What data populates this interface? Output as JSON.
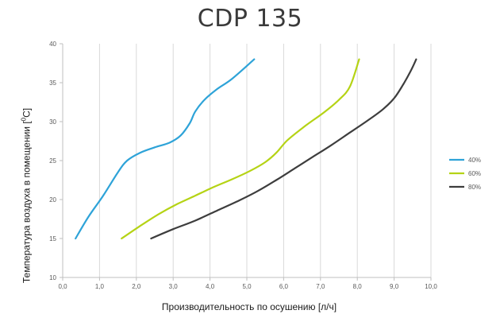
{
  "chart_data": {
    "type": "line",
    "title": "CDP 135",
    "xlabel": "Производительность по осушению [л/ч]",
    "ylabel_prefix": "Температура воздуха в помещении [",
    "ylabel_sup": "0",
    "ylabel_suffix": "C]",
    "xlim": [
      0,
      10
    ],
    "ylim": [
      10,
      40
    ],
    "xticks": [
      "0,0",
      "1,0",
      "2,0",
      "3,0",
      "4,0",
      "5,0",
      "6,0",
      "7,0",
      "8,0",
      "9,0",
      "10,0"
    ],
    "yticks": [
      "10",
      "15",
      "20",
      "25",
      "30",
      "35",
      "40"
    ],
    "grid": "vertical",
    "legend_position": "right",
    "series": [
      {
        "name": "40%",
        "color": "#2ea3d8",
        "points": [
          [
            0.35,
            15
          ],
          [
            0.7,
            17.8
          ],
          [
            1.1,
            20.5
          ],
          [
            1.5,
            23.5
          ],
          [
            1.75,
            25
          ],
          [
            2.1,
            26
          ],
          [
            2.5,
            26.7
          ],
          [
            2.9,
            27.3
          ],
          [
            3.2,
            28.2
          ],
          [
            3.45,
            29.8
          ],
          [
            3.6,
            31.3
          ],
          [
            3.85,
            32.8
          ],
          [
            4.2,
            34.2
          ],
          [
            4.6,
            35.5
          ],
          [
            5.2,
            38
          ]
        ]
      },
      {
        "name": "60%",
        "color": "#b5d315",
        "points": [
          [
            1.6,
            15
          ],
          [
            2.1,
            16.6
          ],
          [
            2.6,
            18.1
          ],
          [
            3.1,
            19.4
          ],
          [
            3.6,
            20.5
          ],
          [
            4.1,
            21.6
          ],
          [
            4.6,
            22.6
          ],
          [
            5.1,
            23.7
          ],
          [
            5.5,
            24.8
          ],
          [
            5.8,
            26
          ],
          [
            6.1,
            27.6
          ],
          [
            6.6,
            29.5
          ],
          [
            7.1,
            31.2
          ],
          [
            7.5,
            32.8
          ],
          [
            7.8,
            34.5
          ],
          [
            8.05,
            38
          ]
        ]
      },
      {
        "name": "80%",
        "color": "#3d3d3d",
        "points": [
          [
            2.4,
            15
          ],
          [
            3.0,
            16.2
          ],
          [
            3.6,
            17.3
          ],
          [
            4.2,
            18.6
          ],
          [
            4.8,
            19.9
          ],
          [
            5.3,
            21.1
          ],
          [
            5.8,
            22.5
          ],
          [
            6.3,
            24.0
          ],
          [
            6.8,
            25.5
          ],
          [
            7.3,
            27.0
          ],
          [
            7.8,
            28.6
          ],
          [
            8.3,
            30.2
          ],
          [
            8.7,
            31.6
          ],
          [
            9.0,
            33
          ],
          [
            9.25,
            34.8
          ],
          [
            9.45,
            36.5
          ],
          [
            9.6,
            38
          ]
        ]
      }
    ]
  }
}
